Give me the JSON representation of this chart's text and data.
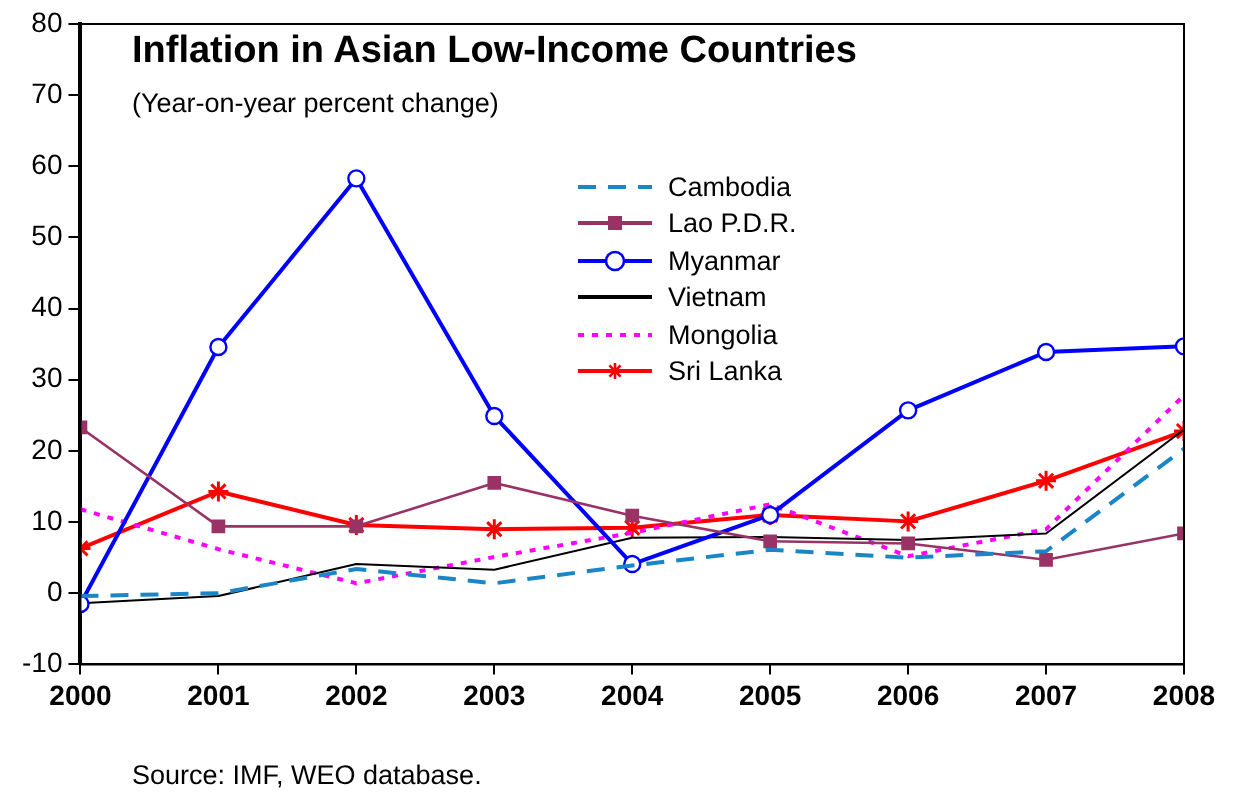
{
  "chart_data": {
    "type": "line",
    "title": "Inflation in Asian Low-Income Countries",
    "subtitle": "(Year-on-year percent change)",
    "annotations": [
      "Source: IMF, WEO database."
    ],
    "x": [
      2000,
      2001,
      2002,
      2003,
      2004,
      2005,
      2006,
      2007,
      2008
    ],
    "xlim": [
      2000,
      2008
    ],
    "xticks": [
      2000,
      2001,
      2002,
      2003,
      2004,
      2005,
      2006,
      2007,
      2008
    ],
    "ylim": [
      -10,
      80
    ],
    "yticks": [
      -10,
      0,
      10,
      20,
      30,
      40,
      50,
      60,
      70,
      80
    ],
    "grid": false,
    "legend": "top right",
    "series": [
      {
        "name": "Cambodia",
        "color": "#1a86c8",
        "marker": "none",
        "line_style": "dashed",
        "values": [
          -0.4,
          0,
          3.4,
          1.4,
          3.9,
          6.1,
          5.0,
          5.9,
          20.3
        ]
      },
      {
        "name": "Lao P.D.R.",
        "color": "#993366",
        "marker": "square",
        "line_style": "solid",
        "values": [
          23.3,
          9.4,
          9.4,
          15.5,
          10.9,
          7.3,
          7.0,
          4.7,
          8.4
        ]
      },
      {
        "name": "Myanmar",
        "color": "#0000ff",
        "marker": "circle",
        "line_style": "solid",
        "values": [
          -1.5,
          34.6,
          58.3,
          24.9,
          4.1,
          11.0,
          25.7,
          33.9,
          34.7
        ]
      },
      {
        "name": "Vietnam",
        "color": "#000000",
        "marker": "none",
        "line_style": "solid",
        "values": [
          -1.4,
          -0.4,
          4.1,
          3.3,
          7.8,
          7.9,
          7.5,
          8.4,
          23.0
        ]
      },
      {
        "name": "Mongolia",
        "color": "#ff00ff",
        "marker": "none",
        "line_style": "dotted",
        "values": [
          11.8,
          6.2,
          1.4,
          5.1,
          8.5,
          12.5,
          5.2,
          9.0,
          27.8
        ]
      },
      {
        "name": "Sri Lanka",
        "color": "#ff0000",
        "marker": "cross",
        "line_style": "solid",
        "values": [
          6.3,
          14.3,
          9.6,
          9.0,
          9.2,
          11.0,
          10.1,
          15.8,
          22.8
        ]
      }
    ]
  }
}
